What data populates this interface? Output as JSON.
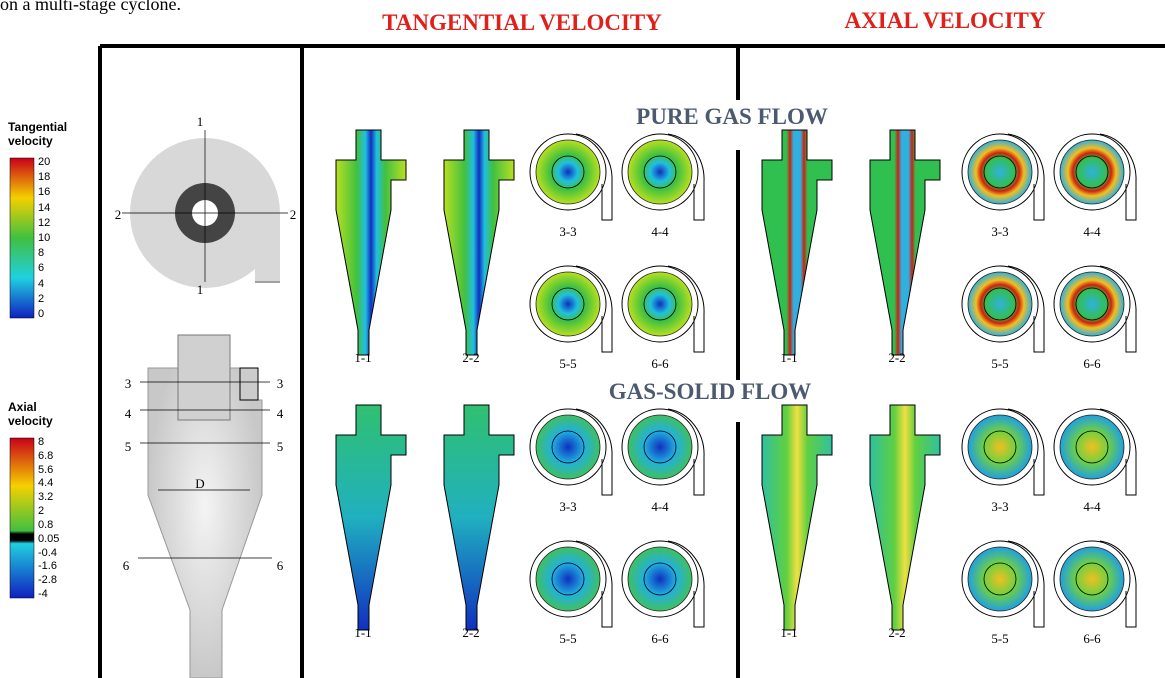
{
  "caption_fragment": "on a multi-stage cyclone.",
  "columns": [
    "TANGENTIAL VELOCITY",
    "AXIAL VELOCITY"
  ],
  "rows": [
    "PURE GAS FLOW",
    "GAS-SOLID FLOW"
  ],
  "legends": [
    {
      "title": "Tangential velocity",
      "ticks": [
        20,
        18,
        16,
        14,
        12,
        10,
        8,
        6,
        4,
        2,
        0
      ]
    },
    {
      "title": "Axial velocity",
      "ticks": [
        8,
        6.8,
        5.6,
        4.4,
        3.2,
        2,
        0.8,
        0.05,
        -0.4,
        -1.6,
        -2.8,
        -4
      ]
    }
  ],
  "geometry": {
    "section_labels": [
      "1",
      "2",
      "3",
      "4",
      "5",
      "6"
    ],
    "diameter_label": "D"
  },
  "panel_labels": [
    "1-1",
    "2-2",
    "3-3",
    "4-4",
    "5-5",
    "6-6"
  ]
}
